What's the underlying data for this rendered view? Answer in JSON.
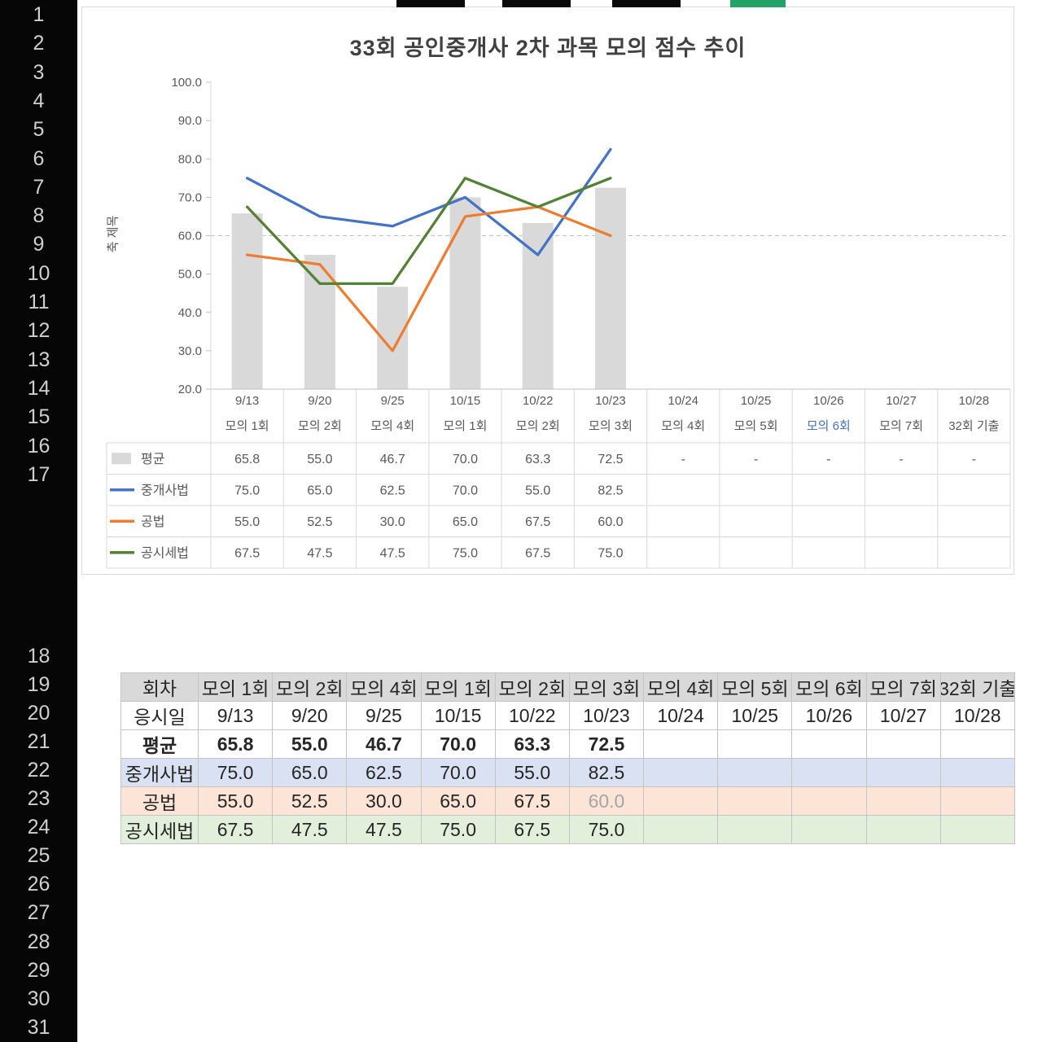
{
  "colors": {
    "selection_green": "#21a366",
    "header_strip_black": "#0a0a0a",
    "bar_gray": "#d9d9d9",
    "series_blue": "#4472c4",
    "series_orange": "#ed7d31",
    "series_green": "#548235",
    "row_blue_bg": "#d9e1f2",
    "row_orange_bg": "#fce4d6",
    "row_green_bg": "#e2efda",
    "table_header_bg": "#d9d9d9",
    "muted_value_gray": "#a6a6a6"
  },
  "sheet": {
    "row_numbers_top": [
      "1",
      "2",
      "3",
      "4",
      "5",
      "6",
      "7",
      "8",
      "9",
      "10",
      "11",
      "12",
      "13",
      "14",
      "15",
      "16",
      "17"
    ],
    "row_numbers_bottom": [
      "18",
      "19",
      "20",
      "21",
      "22",
      "23",
      "24",
      "25",
      "26",
      "27",
      "28",
      "29",
      "30",
      "31"
    ]
  },
  "chart_data": {
    "type": "combo",
    "title": "33회 공인중개사 2차 과목 모의 점수 추이",
    "y_axis_title": "축 제목",
    "xlabel": "",
    "ylabel": "축 제목",
    "ylim": [
      20,
      100
    ],
    "y_tick_step": 10,
    "reference_line": 60,
    "grid": "dashed horizontal line at 60 only",
    "legend_position": "data-table-left",
    "categories": [
      "9/13",
      "9/20",
      "9/25",
      "10/15",
      "10/22",
      "10/23",
      "10/24",
      "10/25",
      "10/26",
      "10/27",
      "10/28"
    ],
    "category_sublabels": [
      "모의 1회",
      "모의 2회",
      "모의 4회",
      "모의 1회",
      "모의 2회",
      "모의 3회",
      "모의 4회",
      "모의 5회",
      "모의 6회",
      "모의 7회",
      "32회 기출"
    ],
    "sublabel_highlight": {
      "index": 8,
      "color": "#4472c4"
    },
    "series": [
      {
        "name": "평균",
        "type": "bar",
        "color": "#d9d9d9",
        "values": [
          65.8,
          55.0,
          46.7,
          70.0,
          63.3,
          72.5,
          null,
          null,
          null,
          null,
          null
        ],
        "display": [
          "65.8",
          "55.0",
          "46.7",
          "70.0",
          "63.3",
          "72.5",
          "-",
          "-",
          "-",
          "-",
          "-"
        ]
      },
      {
        "name": "중개사법",
        "type": "line",
        "color": "#4472c4",
        "values": [
          75.0,
          65.0,
          62.5,
          70.0,
          55.0,
          82.5,
          null,
          null,
          null,
          null,
          null
        ],
        "display": [
          "75.0",
          "65.0",
          "62.5",
          "70.0",
          "55.0",
          "82.5",
          "",
          "",
          "",
          "",
          ""
        ]
      },
      {
        "name": "공법",
        "type": "line",
        "color": "#ed7d31",
        "values": [
          55.0,
          52.5,
          30.0,
          65.0,
          67.5,
          60.0,
          null,
          null,
          null,
          null,
          null
        ],
        "display": [
          "55.0",
          "52.5",
          "30.0",
          "65.0",
          "67.5",
          "60.0",
          "",
          "",
          "",
          "",
          ""
        ]
      },
      {
        "name": "공시세법",
        "type": "line",
        "color": "#548235",
        "values": [
          67.5,
          47.5,
          47.5,
          75.0,
          67.5,
          75.0,
          null,
          null,
          null,
          null,
          null
        ],
        "display": [
          "67.5",
          "47.5",
          "47.5",
          "75.0",
          "67.5",
          "75.0",
          "",
          "",
          "",
          "",
          ""
        ]
      }
    ]
  },
  "table": {
    "header_row": [
      "회차",
      "모의 1회",
      "모의 2회",
      "모의 4회",
      "모의 1회",
      "모의 2회",
      "모의 3회",
      "모의 4회",
      "모의 5회",
      "모의 6회",
      "모의 7회",
      "32회 기출"
    ],
    "rows": [
      {
        "name": "응시일",
        "bg": "#ffffff",
        "bold": false,
        "muted": [],
        "cells": [
          "9/13",
          "9/20",
          "9/25",
          "10/15",
          "10/22",
          "10/23",
          "10/24",
          "10/25",
          "10/26",
          "10/27",
          "10/28"
        ]
      },
      {
        "name": "평균",
        "bg": "#ffffff",
        "bold": true,
        "muted": [],
        "cells": [
          "65.8",
          "55.0",
          "46.7",
          "70.0",
          "63.3",
          "72.5",
          "",
          "",
          "",
          "",
          ""
        ]
      },
      {
        "name": "중개사법",
        "bg": "#d9e1f2",
        "bold": false,
        "muted": [],
        "cells": [
          "75.0",
          "65.0",
          "62.5",
          "70.0",
          "55.0",
          "82.5",
          "",
          "",
          "",
          "",
          ""
        ]
      },
      {
        "name": "공법",
        "bg": "#fce4d6",
        "bold": false,
        "muted": [
          5
        ],
        "cells": [
          "55.0",
          "52.5",
          "30.0",
          "65.0",
          "67.5",
          "60.0",
          "",
          "",
          "",
          "",
          ""
        ]
      },
      {
        "name": "공시세법",
        "bg": "#e2efda",
        "bold": false,
        "muted": [],
        "cells": [
          "67.5",
          "47.5",
          "47.5",
          "75.0",
          "67.5",
          "75.0",
          "",
          "",
          "",
          "",
          ""
        ]
      }
    ]
  }
}
